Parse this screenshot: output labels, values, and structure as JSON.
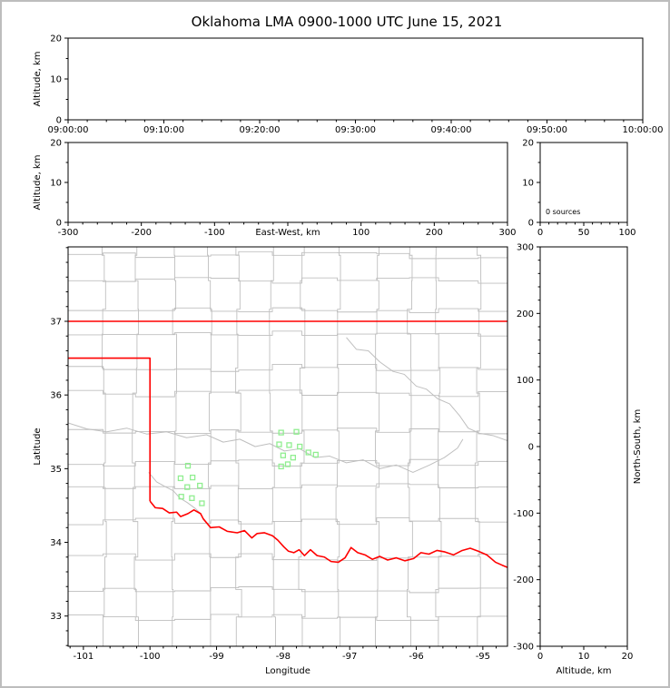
{
  "title": "Oklahoma LMA 0900-1000 UTC June 15, 2021",
  "colors": {
    "background": "#ffffff",
    "frame_border": "#bdbdbd",
    "axis": "#000000",
    "county_line": "#bfbfbf",
    "river_line": "#bfbfbf",
    "state_line": "#ff0000",
    "station_marker": "#90ee90"
  },
  "chart_data": [
    {
      "id": "time_height",
      "type": "scatter",
      "ylabel": "Altitude, km",
      "ylim": [
        0,
        20
      ],
      "yticks": [
        {
          "v": 0,
          "label": "0"
        },
        {
          "v": 10,
          "label": "10"
        },
        {
          "v": 20,
          "label": "20"
        }
      ],
      "xlim": [
        0,
        6
      ],
      "xticks": [
        {
          "v": 0,
          "label": "09:00:00"
        },
        {
          "v": 1,
          "label": "09:10:00"
        },
        {
          "v": 2,
          "label": "09:20:00"
        },
        {
          "v": 3,
          "label": "09:30:00"
        },
        {
          "v": 4,
          "label": "09:40:00"
        },
        {
          "v": 5,
          "label": "09:50:00"
        },
        {
          "v": 6,
          "label": "10:00:00"
        }
      ],
      "x_minor": 5,
      "y_minor": 2,
      "points": []
    },
    {
      "id": "ew_height",
      "type": "scatter",
      "xlabel": "East-West, km",
      "xlabel_inline_at": 0,
      "ylabel": "Altitude, km",
      "xlim": [
        -300,
        300
      ],
      "xticks": [
        {
          "v": -300,
          "label": "-300"
        },
        {
          "v": -200,
          "label": "-200"
        },
        {
          "v": -100,
          "label": "-100"
        },
        {
          "v": 0,
          "label": ""
        },
        {
          "v": 100,
          "label": "100"
        },
        {
          "v": 200,
          "label": "200"
        },
        {
          "v": 300,
          "label": "300"
        }
      ],
      "ylim": [
        0,
        20
      ],
      "yticks": [
        {
          "v": 0,
          "label": "0"
        },
        {
          "v": 10,
          "label": "10"
        },
        {
          "v": 20,
          "label": "20"
        }
      ],
      "x_minor": 5,
      "y_minor": 2,
      "points": []
    },
    {
      "id": "alt_hist",
      "type": "line",
      "annotation": "0 sources",
      "xlim": [
        0,
        100
      ],
      "xticks": [
        {
          "v": 0,
          "label": "0"
        },
        {
          "v": 50,
          "label": "50"
        },
        {
          "v": 100,
          "label": "100"
        }
      ],
      "ylim": [
        0,
        20
      ],
      "yticks": [
        {
          "v": 0,
          "label": "0"
        },
        {
          "v": 10,
          "label": "10"
        },
        {
          "v": 20,
          "label": "20"
        }
      ],
      "x_minor": 5,
      "y_minor": 2,
      "points": []
    },
    {
      "id": "plan_view",
      "type": "scatter",
      "xlabel": "Longitude",
      "ylabel": "Latitude",
      "xlim": [
        -101.23,
        -94.63
      ],
      "xticks": [
        {
          "v": -101,
          "label": "-101"
        },
        {
          "v": -100,
          "label": "-100"
        },
        {
          "v": -99,
          "label": "-99"
        },
        {
          "v": -98,
          "label": "-98"
        },
        {
          "v": -97,
          "label": "-97"
        },
        {
          "v": -96,
          "label": "-96"
        },
        {
          "v": -95,
          "label": "-95"
        }
      ],
      "ylim": [
        32.59,
        38.01
      ],
      "yticks": [
        {
          "v": 33,
          "label": "33"
        },
        {
          "v": 34,
          "label": "34"
        },
        {
          "v": 35,
          "label": "35"
        },
        {
          "v": 36,
          "label": "36"
        },
        {
          "v": 37,
          "label": "37"
        }
      ],
      "x_minor": 5,
      "y_minor": 5,
      "stations": [
        [
          -99.43,
          35.04
        ],
        [
          -99.54,
          34.87
        ],
        [
          -99.36,
          34.88
        ],
        [
          -99.44,
          34.75
        ],
        [
          -99.25,
          34.77
        ],
        [
          -99.53,
          34.62
        ],
        [
          -99.37,
          34.6
        ],
        [
          -99.22,
          34.53
        ],
        [
          -98.03,
          35.49
        ],
        [
          -97.8,
          35.5
        ],
        [
          -98.06,
          35.33
        ],
        [
          -97.91,
          35.32
        ],
        [
          -97.75,
          35.3
        ],
        [
          -98.0,
          35.18
        ],
        [
          -97.85,
          35.15
        ],
        [
          -97.62,
          35.22
        ],
        [
          -97.51,
          35.19
        ],
        [
          -98.03,
          35.03
        ],
        [
          -97.93,
          35.06
        ]
      ],
      "state_border": [
        [
          [
            -101.23,
            37.0
          ],
          [
            -94.63,
            37.0
          ]
        ],
        [
          [
            -101.23,
            36.5
          ],
          [
            -100.0,
            36.5
          ],
          [
            -100.0,
            34.56
          ]
        ],
        [
          [
            -100.0,
            34.56
          ],
          [
            -99.92,
            34.47
          ],
          [
            -99.81,
            34.46
          ],
          [
            -99.71,
            34.4
          ],
          [
            -99.6,
            34.41
          ],
          [
            -99.54,
            34.35
          ],
          [
            -99.43,
            34.39
          ],
          [
            -99.34,
            34.44
          ],
          [
            -99.24,
            34.39
          ],
          [
            -99.2,
            34.32
          ],
          [
            -99.09,
            34.2
          ],
          [
            -98.96,
            34.21
          ],
          [
            -98.84,
            34.15
          ],
          [
            -98.69,
            34.13
          ],
          [
            -98.58,
            34.16
          ],
          [
            -98.47,
            34.06
          ],
          [
            -98.39,
            34.12
          ],
          [
            -98.28,
            34.13
          ],
          [
            -98.16,
            34.09
          ],
          [
            -98.08,
            34.03
          ],
          [
            -97.99,
            33.94
          ],
          [
            -97.92,
            33.88
          ],
          [
            -97.84,
            33.86
          ],
          [
            -97.76,
            33.9
          ],
          [
            -97.68,
            33.82
          ],
          [
            -97.59,
            33.9
          ],
          [
            -97.49,
            33.82
          ],
          [
            -97.38,
            33.8
          ],
          [
            -97.28,
            33.74
          ],
          [
            -97.17,
            33.73
          ],
          [
            -97.07,
            33.79
          ],
          [
            -96.98,
            33.93
          ],
          [
            -96.88,
            33.86
          ],
          [
            -96.77,
            33.83
          ],
          [
            -96.66,
            33.77
          ],
          [
            -96.55,
            33.81
          ],
          [
            -96.43,
            33.76
          ],
          [
            -96.3,
            33.79
          ],
          [
            -96.17,
            33.75
          ],
          [
            -96.04,
            33.78
          ],
          [
            -95.93,
            33.86
          ],
          [
            -95.81,
            33.84
          ],
          [
            -95.69,
            33.89
          ],
          [
            -95.57,
            33.87
          ],
          [
            -95.44,
            33.83
          ],
          [
            -95.31,
            33.89
          ],
          [
            -95.19,
            33.92
          ],
          [
            -95.07,
            33.88
          ],
          [
            -94.94,
            33.83
          ],
          [
            -94.81,
            33.73
          ],
          [
            -94.71,
            33.69
          ],
          [
            -94.63,
            33.66
          ]
        ]
      ],
      "rivers": [
        [
          [
            -101.23,
            35.62
          ],
          [
            -100.95,
            35.54
          ],
          [
            -100.65,
            35.5
          ],
          [
            -100.35,
            35.55
          ],
          [
            -100.05,
            35.47
          ],
          [
            -99.75,
            35.5
          ],
          [
            -99.45,
            35.42
          ],
          [
            -99.15,
            35.46
          ],
          [
            -98.9,
            35.36
          ],
          [
            -98.65,
            35.4
          ],
          [
            -98.42,
            35.3
          ],
          [
            -98.2,
            35.34
          ],
          [
            -97.98,
            35.24
          ],
          [
            -97.75,
            35.27
          ],
          [
            -97.52,
            35.15
          ],
          [
            -97.3,
            35.17
          ],
          [
            -97.05,
            35.08
          ],
          [
            -96.8,
            35.12
          ],
          [
            -96.55,
            35.0
          ],
          [
            -96.3,
            35.05
          ],
          [
            -96.05,
            34.95
          ],
          [
            -95.8,
            35.05
          ],
          [
            -95.58,
            35.15
          ],
          [
            -95.38,
            35.28
          ],
          [
            -95.3,
            35.4
          ]
        ],
        [
          [
            -97.05,
            36.78
          ],
          [
            -96.9,
            36.62
          ],
          [
            -96.72,
            36.6
          ],
          [
            -96.55,
            36.45
          ],
          [
            -96.35,
            36.32
          ],
          [
            -96.18,
            36.28
          ],
          [
            -96.0,
            36.12
          ],
          [
            -95.85,
            36.08
          ],
          [
            -95.68,
            35.95
          ],
          [
            -95.5,
            35.88
          ],
          [
            -95.35,
            35.72
          ],
          [
            -95.22,
            35.55
          ],
          [
            -95.05,
            35.48
          ],
          [
            -94.85,
            35.45
          ],
          [
            -94.63,
            35.38
          ]
        ],
        [
          [
            -100.02,
            34.95
          ],
          [
            -99.9,
            34.82
          ],
          [
            -99.78,
            34.76
          ],
          [
            -99.65,
            34.7
          ],
          [
            -99.55,
            34.6
          ],
          [
            -99.44,
            34.54
          ],
          [
            -99.32,
            34.46
          ],
          [
            -99.25,
            34.4
          ]
        ]
      ],
      "county_grid": {
        "seed": 42,
        "lon_step": 0.5,
        "lat_step": 0.44,
        "jog": 0.1
      }
    },
    {
      "id": "ns_height",
      "type": "scatter",
      "xlabel": "Altitude, km",
      "ylabel": "North-South, km",
      "ylabel_side": "right",
      "xlim": [
        0,
        20
      ],
      "xticks": [
        {
          "v": 0,
          "label": "0"
        },
        {
          "v": 10,
          "label": "10"
        },
        {
          "v": 20,
          "label": "20"
        }
      ],
      "ylim": [
        -300,
        300
      ],
      "yticks": [
        {
          "v": -300,
          "label": "-300"
        },
        {
          "v": -200,
          "label": "-200"
        },
        {
          "v": -100,
          "label": "-100"
        },
        {
          "v": 0,
          "label": "0"
        },
        {
          "v": 100,
          "label": "100"
        },
        {
          "v": 200,
          "label": "200"
        },
        {
          "v": 300,
          "label": "300"
        }
      ],
      "x_minor": 2,
      "y_minor": 5,
      "points": []
    }
  ]
}
